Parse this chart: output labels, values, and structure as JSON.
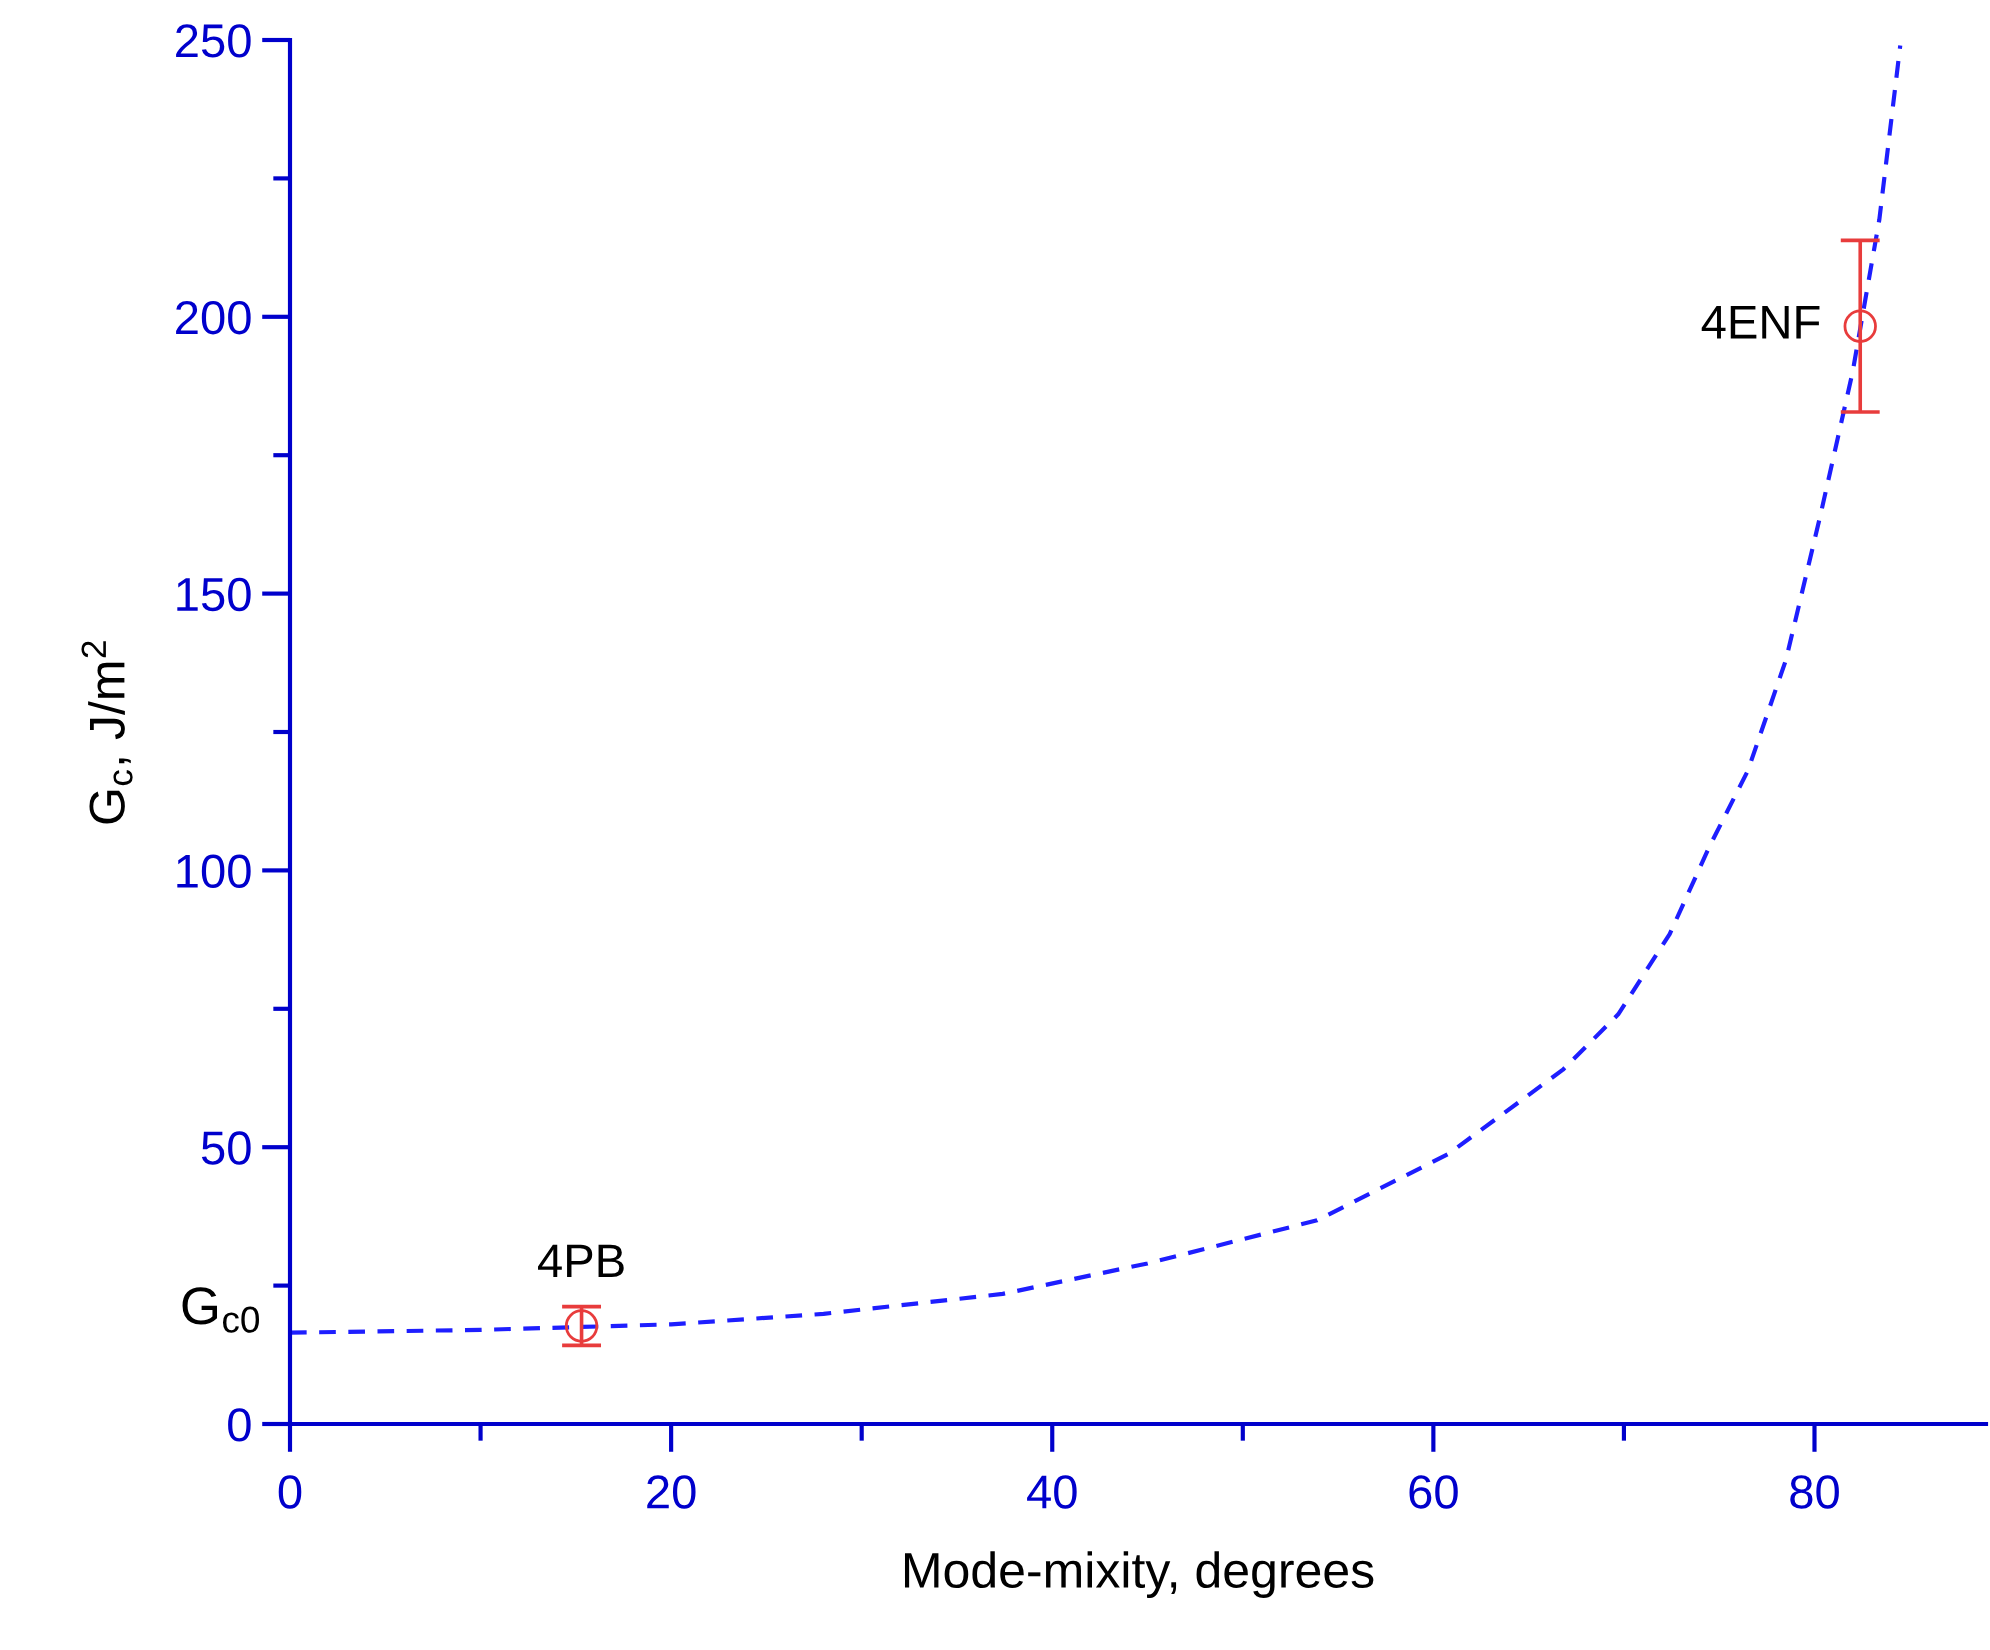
{
  "chart_data": {
    "type": "line",
    "xlabel": "Mode-mixity, degrees",
    "ylabel": "G$_{c}$, J/m$^{2}$",
    "xlim": [
      0,
      89
    ],
    "ylim": [
      0,
      250
    ],
    "xticks": [
      0,
      {
        "value": 10,
        "label": null
      },
      20,
      {
        "value": 30,
        "label": null
      },
      40,
      {
        "value": 50,
        "label": null
      },
      60,
      {
        "value": 70,
        "label": null
      },
      80
    ],
    "yticks": [
      0,
      {
        "value": 25,
        "label": null
      },
      50,
      {
        "value": 75,
        "label": null
      },
      100,
      {
        "value": 125,
        "label": null
      },
      150,
      {
        "value": 175,
        "label": null
      },
      200,
      {
        "value": 225,
        "label": null
      },
      250
    ],
    "grid": false,
    "series": [
      {
        "color": "#1e1eff",
        "line_style": "dashed",
        "marker": "none",
        "x": [
          0,
          10,
          20,
          28,
          37.4,
          45,
          53.9,
          60.8,
          66.8,
          69.7,
          72.4,
          74.5,
          76.5,
          78.5,
          80.3,
          82,
          83.4,
          84.5
        ],
        "values": [
          16.5,
          17,
          18,
          19.9,
          23.5,
          29,
          36.8,
          48.8,
          64,
          74,
          88.5,
          104.4,
          118,
          138,
          164,
          190,
          217.5,
          249
        ]
      },
      {
        "type": "scatter",
        "color": "#e83c3c",
        "marker": "circle",
        "x": [
          15.3,
          82.4
        ],
        "values": [
          17.7,
          198.3
        ],
        "errors": [
          3.5,
          15.5
        ]
      }
    ],
    "annotations": [
      {
        "text": "4PB",
        "x": 15.3,
        "y": 17.7
      },
      {
        "text": "4ENF",
        "x": 82.4,
        "y": 198.3
      },
      {
        "text": "G$_{c0}$",
        "x": 0,
        "y": 16.5
      }
    ]
  }
}
